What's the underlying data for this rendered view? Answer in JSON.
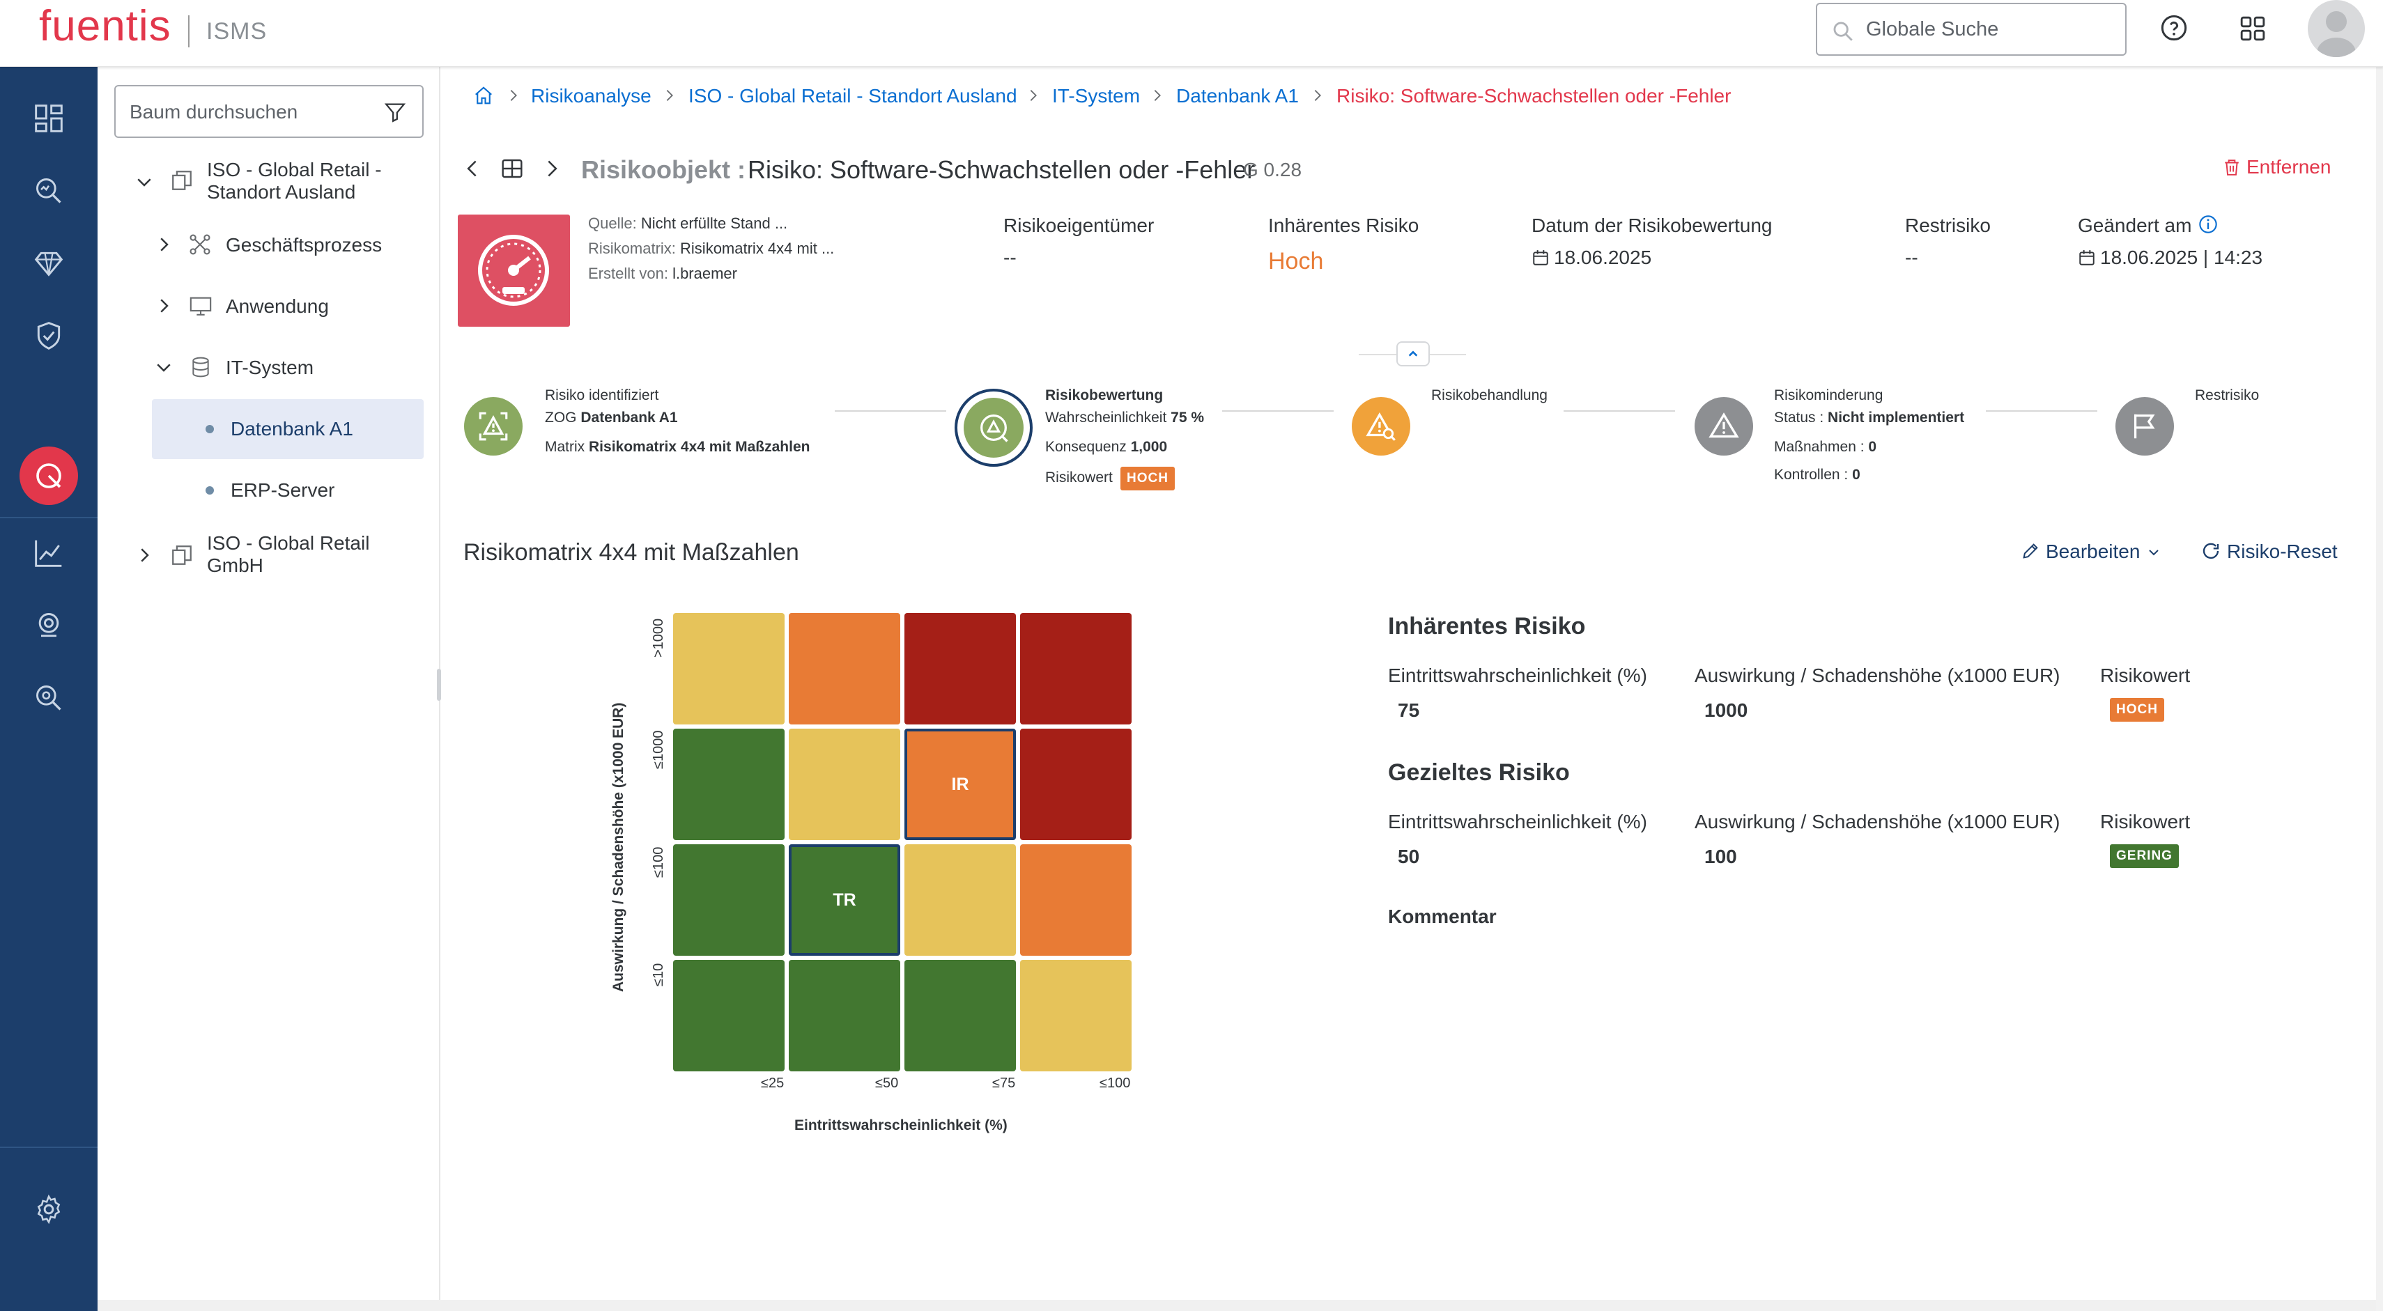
{
  "header": {
    "logo": "fuentis",
    "product": "ISMS",
    "search_placeholder": "Globale Suche"
  },
  "tree": {
    "search_placeholder": "Baum durchsuchen",
    "items": [
      {
        "label_line1": "ISO - Global Retail -",
        "label_line2": "Standort Ausland"
      },
      {
        "label": "Geschäftsprozess"
      },
      {
        "label": "Anwendung"
      },
      {
        "label": "IT-System"
      },
      {
        "label": "Datenbank A1"
      },
      {
        "label": "ERP-Server"
      },
      {
        "label_line1": "ISO - Global Retail",
        "label_line2": "GmbH"
      }
    ]
  },
  "breadcrumb": [
    "Risikoanalyse",
    "ISO - Global Retail - Standort Ausland",
    "IT-System",
    "Datenbank A1",
    "Risiko: Software-Schwachstellen oder -Fehler"
  ],
  "object": {
    "prefix": "Risikoobjekt :",
    "title": "Risiko: Software-Schwachstellen oder -Fehler",
    "version": "G 0.28",
    "remove_label": "Entfernen",
    "meta": {
      "quelle_label": "Quelle:",
      "quelle_value": "Nicht erfüllte Stand ...",
      "matrix_label": "Risikomatrix:",
      "matrix_value": "Risikomatrix 4x4 mit ...",
      "erstellt_label": "Erstellt von:",
      "erstellt_value": "l.braemer"
    },
    "fields": [
      {
        "label": "Risikoeigentümer",
        "value": "--"
      },
      {
        "label": "Inhärentes Risiko",
        "value": "Hoch"
      },
      {
        "label": "Datum der Risikobewertung",
        "value": "18.06.2025"
      },
      {
        "label": "Restrisiko",
        "value": "--"
      },
      {
        "label": "Geändert am",
        "value": "18.06.2025 | 14:23"
      }
    ]
  },
  "steps": {
    "s1": {
      "title": "Risiko identifiziert",
      "l2_label": "ZOG",
      "l2_value": "Datenbank A1",
      "l3_label": "Matrix",
      "l3_value": "Risikomatrix 4x4 mit Maßzahlen"
    },
    "s2": {
      "title": "Risikobewertung",
      "l2_label": "Wahrscheinlichkeit",
      "l2_value": "75 %",
      "l3_label": "Konsequenz",
      "l3_value": "1,000",
      "l4_label": "Risikowert",
      "badge": "HOCH"
    },
    "s3": {
      "title": "Risikobehandlung"
    },
    "s4": {
      "title": "Risikominderung",
      "l2_label": "Status :",
      "l2_value": "Nicht implementiert",
      "l3_label": "Maßnahmen :",
      "l3_value": "0",
      "l4_label": "Kontrollen :",
      "l4_value": "0"
    },
    "s5": {
      "title": "Restrisiko"
    }
  },
  "section": {
    "title": "Risikomatrix 4x4 mit Maßzahlen",
    "edit_label": "Bearbeiten",
    "reset_label": "Risiko-Reset"
  },
  "matrix": {
    "y_axis_label": "Auswirkung / Schadenshöhe (x1000 EUR)",
    "x_axis_label": "Eintrittswahrscheinlichkeit (%)",
    "y_ticks": [
      ">1000",
      "≤1000",
      "≤100",
      "≤10"
    ],
    "x_ticks": [
      "≤25",
      "≤50",
      "≤75",
      "≤100"
    ],
    "colors": {
      "green": "#427730",
      "yellow": "#e6c35a",
      "orange": "#e87b35",
      "red": "#a51f17"
    },
    "rows": [
      [
        "yellow",
        "orange",
        "red",
        "red"
      ],
      [
        "green",
        "yellow",
        "orange",
        "red"
      ],
      [
        "green",
        "green",
        "yellow",
        "orange"
      ],
      [
        "green",
        "green",
        "green",
        "yellow"
      ]
    ],
    "markers": [
      {
        "label": "IR",
        "row": 1,
        "col": 2
      },
      {
        "label": "TR",
        "row": 2,
        "col": 1
      }
    ]
  },
  "inherent": {
    "title": "Inhärentes Risiko",
    "prob_label": "Eintrittswahrscheinlichkeit (%)",
    "prob_value": "75",
    "impact_label": "Auswirkung / Schadenshöhe (x1000 EUR)",
    "impact_value": "1000",
    "risk_label": "Risikowert",
    "risk_value": "HOCH"
  },
  "target": {
    "title": "Gezieltes Risiko",
    "prob_label": "Eintrittswahrscheinlichkeit (%)",
    "prob_value": "50",
    "impact_label": "Auswirkung / Schadenshöhe (x1000 EUR)",
    "impact_value": "100",
    "risk_label": "Risikowert",
    "risk_value": "GERING"
  },
  "comment_label": "Kommentar"
}
